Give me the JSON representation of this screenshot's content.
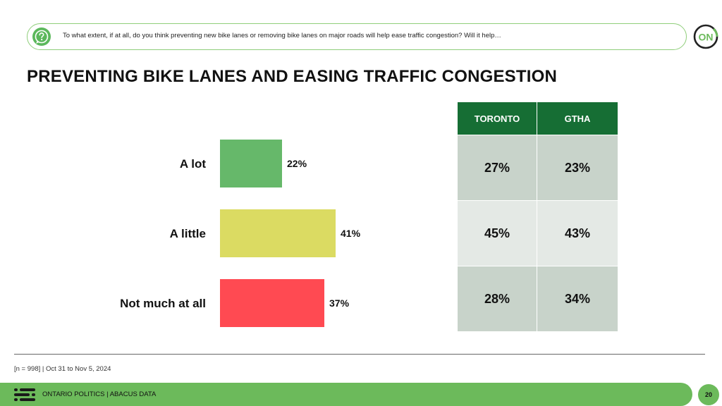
{
  "question": {
    "text": "To what extent, if at all, do you think preventing new bike lanes or removing bike lanes on major roads will help ease traffic congestion? Will it help…"
  },
  "logo": {
    "text": "ON"
  },
  "title": "PREVENTING BIKE LANES AND EASING TRAFFIC CONGESTION",
  "chart_data": {
    "type": "bar",
    "orientation": "horizontal",
    "title": "PREVENTING BIKE LANES AND EASING TRAFFIC CONGESTION",
    "categories": [
      "A lot",
      "A little",
      "Not much at all"
    ],
    "values": [
      22,
      41,
      37
    ],
    "value_labels": [
      "22%",
      "41%",
      "37%"
    ],
    "colors": [
      "#66b86a",
      "#dbdb62",
      "#ff4a52"
    ],
    "xlim": [
      0,
      100
    ],
    "unit": "%"
  },
  "table": {
    "headers": [
      "TORONTO",
      "GTHA"
    ],
    "rows": [
      [
        "27%",
        "23%"
      ],
      [
        "45%",
        "43%"
      ],
      [
        "28%",
        "34%"
      ]
    ]
  },
  "footnote": "[n = 998] | Oct 31 to Nov 5, 2024",
  "footer": {
    "text": "ONTARIO POLITICS  |  ABACUS DATA",
    "page_number": "20"
  },
  "colors": {
    "accent_green": "#6cba5b",
    "table_header": "#166e34"
  }
}
